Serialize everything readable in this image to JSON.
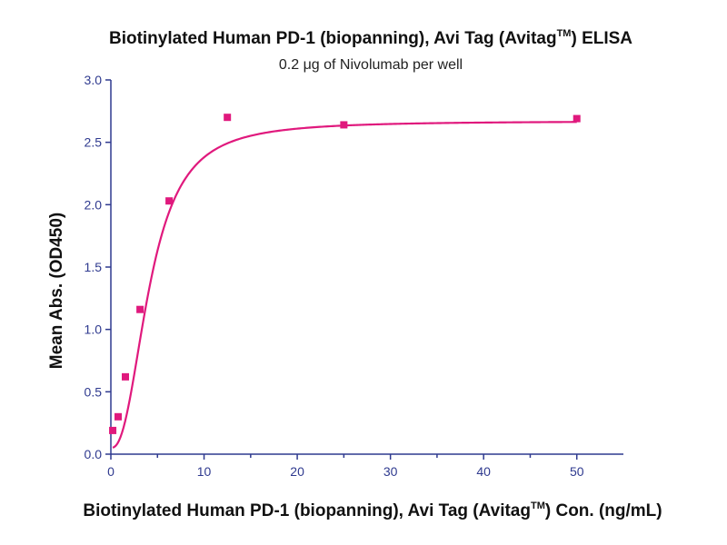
{
  "chart_data": {
    "type": "scatter",
    "title": "Biotinylated Human PD-1 (biopanning), Avi Tag (Avitag",
    "title_sup": "TM",
    "title_suffix": ") ELISA",
    "subtitle": "0.2 μg of Nivolumab per well",
    "xlabel": "Biotinylated Human PD-1 (biopanning), Avi Tag (Avitag",
    "xlabel_sup": "TM",
    "xlabel_suffix": ") Con. (ng/mL)",
    "ylabel": "Mean Abs. (OD450)",
    "xlim": [
      0,
      55
    ],
    "ylim": [
      0,
      3.0
    ],
    "xticks": [
      0,
      10,
      20,
      30,
      40,
      50
    ],
    "yticks": [
      0.0,
      0.5,
      1.0,
      1.5,
      2.0,
      2.5,
      3.0
    ],
    "xtick_labels": [
      "0",
      "10",
      "20",
      "30",
      "40",
      "50"
    ],
    "ytick_labels": [
      "0.0",
      "0.5",
      "1.0",
      "1.5",
      "2.0",
      "2.5",
      "3.0"
    ],
    "series": [
      {
        "x": [
          0.2,
          0.78,
          1.56,
          3.13,
          6.25,
          12.5,
          25,
          50
        ],
        "y": [
          0.19,
          0.3,
          0.62,
          1.16,
          2.03,
          2.7,
          2.64,
          2.69
        ],
        "color": "#e0197d",
        "marker": "square",
        "fit": "sigmoidal"
      }
    ],
    "grid": false,
    "legend": false
  }
}
